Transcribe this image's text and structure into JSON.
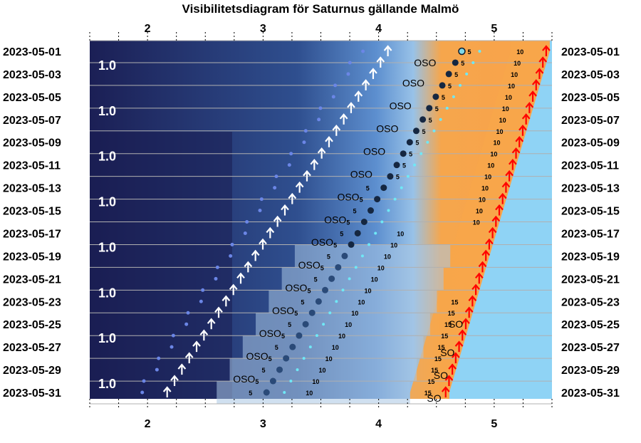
{
  "chart_data": {
    "type": "visibility-diagram",
    "title": "Visibilitetsdiagram för Saturnus gällande Malmö",
    "x_ticks": [
      "2",
      "3",
      "4",
      "5"
    ],
    "xlim": [
      1.5,
      5.5
    ],
    "dates": [
      "2023-05-01",
      "2023-05-03",
      "2023-05-05",
      "2023-05-07",
      "2023-05-09",
      "2023-05-11",
      "2023-05-13",
      "2023-05-15",
      "2023-05-17",
      "2023-05-19",
      "2023-05-21",
      "2023-05-23",
      "2023-05-25",
      "2023-05-27",
      "2023-05-29",
      "2023-05-31"
    ],
    "magnitude_labels": [
      {
        "date_index": 0,
        "text": "1.0"
      },
      {
        "date_index": 2,
        "text": "1.0"
      },
      {
        "date_index": 4,
        "text": "1.0"
      },
      {
        "date_index": 6,
        "text": "1.0"
      },
      {
        "date_index": 8,
        "text": "1.0"
      },
      {
        "date_index": 10,
        "text": "1.0"
      },
      {
        "date_index": 12,
        "text": "1.0"
      },
      {
        "date_index": 14,
        "text": "1.0"
      }
    ],
    "rise_arrows": {
      "hour_first": 4.08,
      "hour_last": 2.17,
      "color": "#ffffff"
    },
    "sunrise_arrows": {
      "hour_first": 5.45,
      "hour_last": 4.58,
      "color": "#ff0000"
    },
    "planet_points": {
      "hour_first": 4.72,
      "hour_last": 3.03
    },
    "direction_labels": [
      {
        "date_index": 1,
        "text": "OSO"
      },
      {
        "date_index": 2.8,
        "text": "OSO"
      },
      {
        "date_index": 4.8,
        "text": "OSO"
      },
      {
        "date_index": 6.8,
        "text": "OSO"
      },
      {
        "date_index": 8.8,
        "text": "OSO"
      },
      {
        "date_index": 10.8,
        "text": "OSO"
      },
      {
        "date_index": 12.8,
        "text": "OSO"
      },
      {
        "date_index": 14.8,
        "text": "OSO"
      },
      {
        "date_index": 16.8,
        "text": "OSO"
      },
      {
        "date_index": 18.8,
        "text": "OSO"
      },
      {
        "date_index": 20.8,
        "text": "OSO"
      },
      {
        "date_index": 22.8,
        "text": "OSO"
      },
      {
        "date_index": 24.8,
        "text": "OSO"
      },
      {
        "date_index": 26.8,
        "text": "OSO"
      },
      {
        "date_index": 28.8,
        "text": "OSO"
      }
    ],
    "so_labels": [
      {
        "date_index": 24,
        "text": "SO"
      },
      {
        "date_index": 26.5,
        "text": "SO"
      },
      {
        "date_index": 28.5,
        "text": "SO"
      },
      {
        "date_index": 30.5,
        "text": "SO"
      }
    ],
    "altitude_labels_5": "5",
    "altitude_labels_10": "10",
    "altitude_labels_15": "15",
    "colors": {
      "night": "#1a2050",
      "twilight_mid": "#3a67a8",
      "day_blue": "#8fd3f5",
      "dawn_orange": "#f7a64a",
      "rise_arrow": "#ffffff",
      "sunrise_arrow": "#ff0000",
      "planet": "#1f3556"
    }
  }
}
